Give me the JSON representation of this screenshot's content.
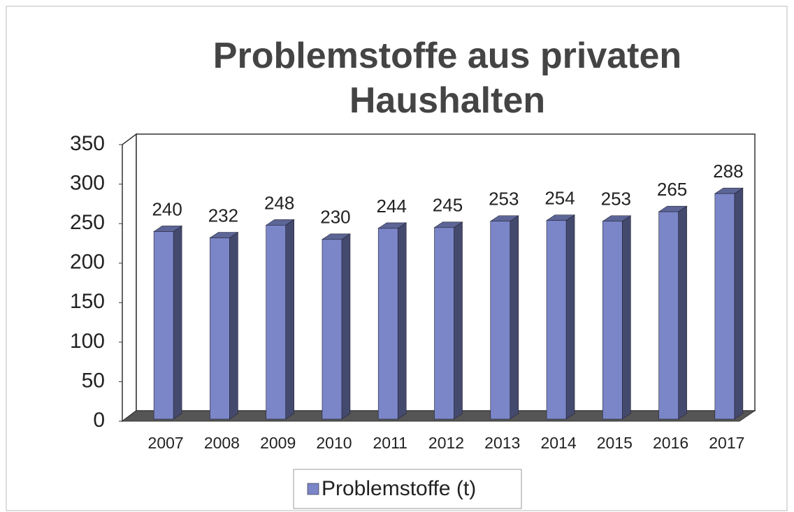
{
  "chart_data": {
    "type": "bar3d",
    "title": "Problemstoffe aus privaten Haushalten",
    "categories": [
      "2007",
      "2008",
      "2009",
      "2010",
      "2011",
      "2012",
      "2013",
      "2014",
      "2015",
      "2016",
      "2017"
    ],
    "series": [
      {
        "name": "Problemstoffe (t)",
        "color": "#7b86c8",
        "values": [
          240,
          232,
          248,
          230,
          244,
          245,
          253,
          254,
          253,
          265,
          288
        ]
      }
    ],
    "ylim": [
      0,
      350
    ],
    "yticks": [
      0,
      50,
      100,
      150,
      200,
      250,
      300,
      350
    ],
    "legend": "bottom"
  }
}
